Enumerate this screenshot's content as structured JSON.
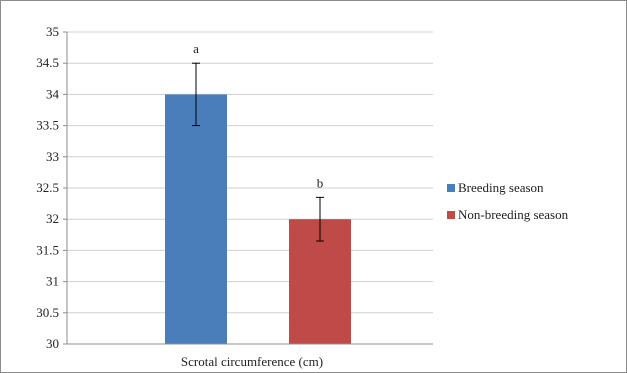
{
  "chart_data": {
    "type": "bar",
    "categories": [
      "Scrotal circumference (cm)"
    ],
    "series": [
      {
        "name": "Breeding season",
        "values": [
          34
        ],
        "error": [
          0.5
        ],
        "sig": "a",
        "color": "#4a7ebb"
      },
      {
        "name": "Non-breeding season",
        "values": [
          32
        ],
        "error": [
          0.35
        ],
        "sig": "b",
        "color": "#be4b48"
      }
    ],
    "xlabel": "Scrotal circumference (cm)",
    "ylabel": "",
    "ylim": [
      30,
      35
    ],
    "yticks": [
      "30",
      "30.5",
      "31",
      "31.5",
      "32",
      "32.5",
      "33",
      "33.5",
      "34",
      "34.5",
      "35"
    ],
    "grid": true,
    "legend_position": "right"
  }
}
